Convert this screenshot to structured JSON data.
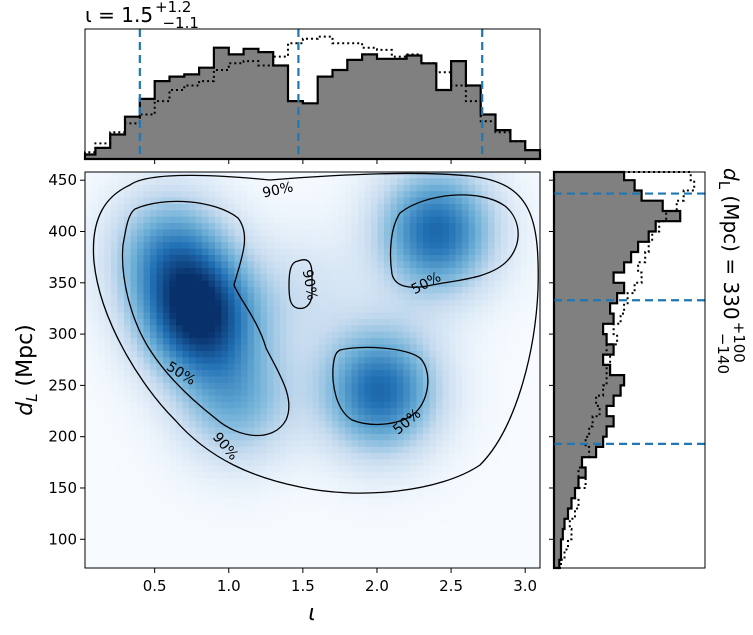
{
  "chart_data": {
    "type": "heatmap",
    "title_top": {
      "text": "ι = 1.5",
      "sup": "+1.2",
      "sub": "−1.1"
    },
    "title_right": {
      "text": "d_L (Mpc) = 330",
      "sup": "+100",
      "sub": "−140"
    },
    "xlabel": "ι",
    "ylabel": "d_L (Mpc)",
    "xlim": [
      0.03,
      3.1
    ],
    "ylim": [
      72,
      458
    ],
    "xticks": [
      0.5,
      1.0,
      1.5,
      2.0,
      2.5,
      3.0
    ],
    "xtick_labels": [
      "0.5",
      "1.0",
      "1.5",
      "2.0",
      "2.5",
      "3.0"
    ],
    "yticks": [
      100,
      150,
      200,
      250,
      300,
      350,
      400,
      450
    ],
    "ytick_labels": [
      "100",
      "150",
      "200",
      "250",
      "300",
      "350",
      "400",
      "450"
    ],
    "colormap": "Blues",
    "density_modes": [
      {
        "x": 0.8,
        "y": 318,
        "weight": 1.0
      },
      {
        "x": 0.6,
        "y": 380,
        "weight": 0.55
      },
      {
        "x": 1.05,
        "y": 235,
        "weight": 0.45
      },
      {
        "x": 2.4,
        "y": 400,
        "weight": 0.8
      },
      {
        "x": 2.02,
        "y": 245,
        "weight": 0.8
      },
      {
        "x": 1.5,
        "y": 340,
        "weight": 0.15
      }
    ],
    "contour_labels": [
      {
        "text": "90%",
        "x": 1.33,
        "y": 441,
        "angle": -12
      },
      {
        "text": "90%",
        "x": 1.55,
        "y": 348,
        "angle": 80
      },
      {
        "text": "50%",
        "x": 2.33,
        "y": 350,
        "angle": -28
      },
      {
        "text": "50%",
        "x": 0.68,
        "y": 262,
        "angle": 32
      },
      {
        "text": "50%",
        "x": 2.2,
        "y": 215,
        "angle": -40
      },
      {
        "text": "90%",
        "x": 0.98,
        "y": 191,
        "angle": 50
      }
    ],
    "top_marginal": {
      "quantile_lines": [
        0.4,
        1.47,
        2.71
      ],
      "bin_edges": [
        0.03,
        0.1,
        0.2,
        0.3,
        0.4,
        0.5,
        0.6,
        0.7,
        0.8,
        0.9,
        1.0,
        1.1,
        1.2,
        1.3,
        1.4,
        1.5,
        1.6,
        1.7,
        1.8,
        1.9,
        2.0,
        2.1,
        2.2,
        2.3,
        2.4,
        2.5,
        2.6,
        2.7,
        2.8,
        2.9,
        3.0,
        3.1
      ],
      "filled_hist": [
        4,
        10,
        22,
        38,
        54,
        70,
        74,
        76,
        82,
        100,
        94,
        99,
        96,
        84,
        52,
        50,
        74,
        80,
        89,
        94,
        90,
        90,
        93,
        86,
        62,
        88,
        66,
        40,
        26,
        16,
        8
      ],
      "dotted_hist": [
        6,
        14,
        24,
        32,
        40,
        52,
        62,
        66,
        70,
        80,
        86,
        88,
        84,
        92,
        104,
        108,
        110,
        104,
        104,
        100,
        98,
        92,
        94,
        86,
        78,
        66,
        52,
        34,
        24,
        16,
        8
      ]
    },
    "right_marginal": {
      "quantile_lines": [
        193,
        333,
        437
      ],
      "bin_edges": [
        72,
        80,
        90,
        100,
        110,
        120,
        130,
        140,
        150,
        160,
        170,
        180,
        190,
        200,
        210,
        220,
        230,
        240,
        250,
        260,
        270,
        280,
        290,
        300,
        310,
        320,
        330,
        340,
        350,
        360,
        370,
        380,
        390,
        400,
        410,
        420,
        430,
        440,
        450,
        458
      ],
      "filled_hist": [
        3,
        4,
        4,
        5,
        6,
        8,
        10,
        12,
        14,
        18,
        16,
        24,
        28,
        30,
        34,
        30,
        34,
        38,
        40,
        32,
        28,
        34,
        30,
        28,
        34,
        32,
        36,
        40,
        34,
        40,
        44,
        48,
        54,
        58,
        72,
        62,
        50,
        46,
        40
      ],
      "dotted_hist": [
        4,
        6,
        8,
        10,
        9,
        12,
        14,
        12,
        18,
        14,
        16,
        20,
        18,
        20,
        22,
        26,
        24,
        28,
        30,
        30,
        32,
        30,
        36,
        34,
        38,
        40,
        42,
        46,
        50,
        48,
        52,
        54,
        56,
        60,
        64,
        70,
        74,
        80,
        78
      ]
    }
  }
}
